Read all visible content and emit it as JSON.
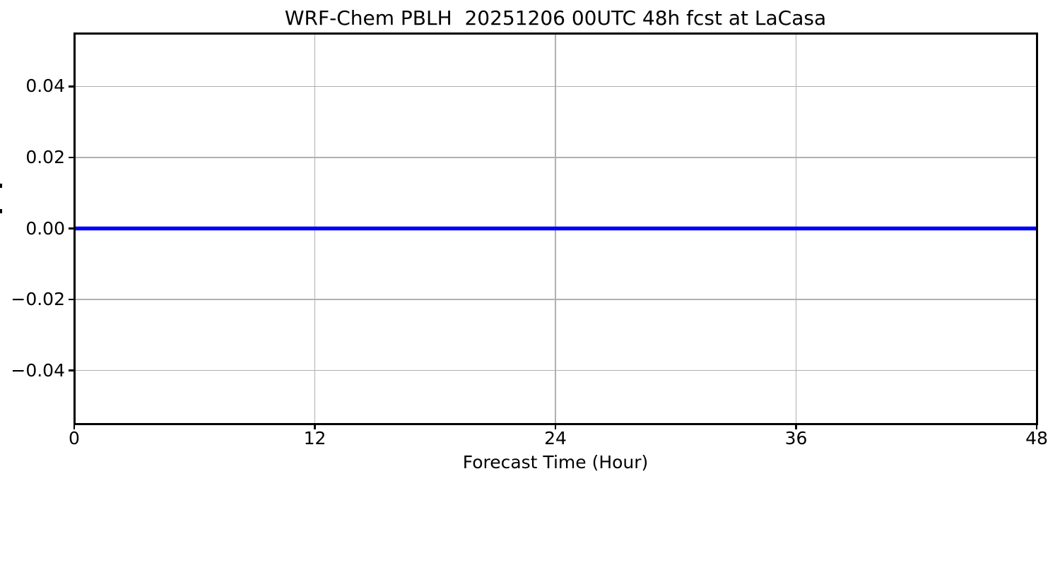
{
  "chart_data": {
    "type": "line",
    "title": "WRF-Chem PBLH  20251206 00UTC 48h fcst at LaCasa",
    "xlabel": "Forecast Time (Hour)",
    "ylabel_clipped": true,
    "xlim": [
      0,
      48
    ],
    "ylim": [
      -0.055,
      0.055
    ],
    "xticks": [
      0,
      12,
      24,
      36,
      48
    ],
    "xtick_labels": [
      "0",
      "12",
      "24",
      "36",
      "48"
    ],
    "yticks": [
      0.04,
      0.02,
      0.0,
      -0.02,
      -0.04
    ],
    "ytick_labels": [
      "0.04",
      "0.02",
      "0.00",
      "−0.02",
      "−0.04"
    ],
    "grid": true,
    "grid_color": "#b0b0b0",
    "axis_color": "#000000",
    "background_color": "#ffffff",
    "legend": null,
    "series": [
      {
        "name": "pblh",
        "color": "#0000ff",
        "linewidth": 5.5,
        "x": [
          0,
          48
        ],
        "y": [
          0.0,
          0.0
        ]
      }
    ]
  }
}
